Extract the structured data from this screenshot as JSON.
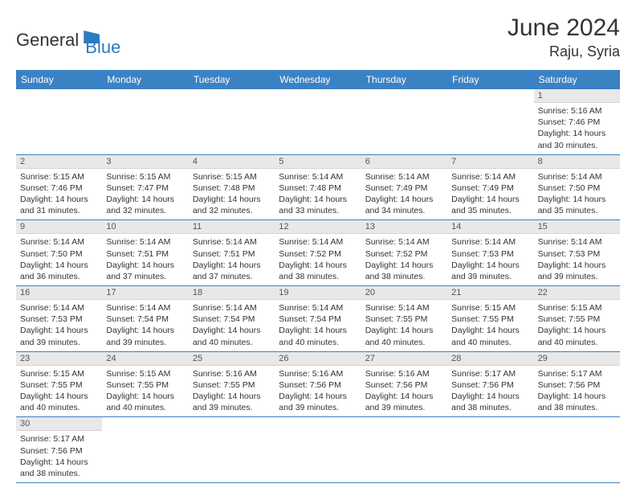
{
  "logo": {
    "text_general": "General",
    "text_blue": "Blue"
  },
  "title": "June 2024",
  "location": "Raju, Syria",
  "colors": {
    "header_bg": "#3b82c4",
    "header_text": "#ffffff",
    "date_bg": "#e8e8e8",
    "date_text": "#555555",
    "body_text": "#333333",
    "border": "#3b82c4",
    "logo_blue": "#2b7bbf"
  },
  "typography": {
    "title_fontsize": 30,
    "location_fontsize": 18,
    "header_fontsize": 12,
    "date_fontsize": 11,
    "body_fontsize": 10.5
  },
  "day_headers": [
    "Sunday",
    "Monday",
    "Tuesday",
    "Wednesday",
    "Thursday",
    "Friday",
    "Saturday"
  ],
  "weeks": [
    [
      null,
      null,
      null,
      null,
      null,
      null,
      {
        "d": "1",
        "sr": "5:16 AM",
        "ss": "7:46 PM",
        "dl": "14 hours and 30 minutes."
      }
    ],
    [
      {
        "d": "2",
        "sr": "5:15 AM",
        "ss": "7:46 PM",
        "dl": "14 hours and 31 minutes."
      },
      {
        "d": "3",
        "sr": "5:15 AM",
        "ss": "7:47 PM",
        "dl": "14 hours and 32 minutes."
      },
      {
        "d": "4",
        "sr": "5:15 AM",
        "ss": "7:48 PM",
        "dl": "14 hours and 32 minutes."
      },
      {
        "d": "5",
        "sr": "5:14 AM",
        "ss": "7:48 PM",
        "dl": "14 hours and 33 minutes."
      },
      {
        "d": "6",
        "sr": "5:14 AM",
        "ss": "7:49 PM",
        "dl": "14 hours and 34 minutes."
      },
      {
        "d": "7",
        "sr": "5:14 AM",
        "ss": "7:49 PM",
        "dl": "14 hours and 35 minutes."
      },
      {
        "d": "8",
        "sr": "5:14 AM",
        "ss": "7:50 PM",
        "dl": "14 hours and 35 minutes."
      }
    ],
    [
      {
        "d": "9",
        "sr": "5:14 AM",
        "ss": "7:50 PM",
        "dl": "14 hours and 36 minutes."
      },
      {
        "d": "10",
        "sr": "5:14 AM",
        "ss": "7:51 PM",
        "dl": "14 hours and 37 minutes."
      },
      {
        "d": "11",
        "sr": "5:14 AM",
        "ss": "7:51 PM",
        "dl": "14 hours and 37 minutes."
      },
      {
        "d": "12",
        "sr": "5:14 AM",
        "ss": "7:52 PM",
        "dl": "14 hours and 38 minutes."
      },
      {
        "d": "13",
        "sr": "5:14 AM",
        "ss": "7:52 PM",
        "dl": "14 hours and 38 minutes."
      },
      {
        "d": "14",
        "sr": "5:14 AM",
        "ss": "7:53 PM",
        "dl": "14 hours and 39 minutes."
      },
      {
        "d": "15",
        "sr": "5:14 AM",
        "ss": "7:53 PM",
        "dl": "14 hours and 39 minutes."
      }
    ],
    [
      {
        "d": "16",
        "sr": "5:14 AM",
        "ss": "7:53 PM",
        "dl": "14 hours and 39 minutes."
      },
      {
        "d": "17",
        "sr": "5:14 AM",
        "ss": "7:54 PM",
        "dl": "14 hours and 39 minutes."
      },
      {
        "d": "18",
        "sr": "5:14 AM",
        "ss": "7:54 PM",
        "dl": "14 hours and 40 minutes."
      },
      {
        "d": "19",
        "sr": "5:14 AM",
        "ss": "7:54 PM",
        "dl": "14 hours and 40 minutes."
      },
      {
        "d": "20",
        "sr": "5:14 AM",
        "ss": "7:55 PM",
        "dl": "14 hours and 40 minutes."
      },
      {
        "d": "21",
        "sr": "5:15 AM",
        "ss": "7:55 PM",
        "dl": "14 hours and 40 minutes."
      },
      {
        "d": "22",
        "sr": "5:15 AM",
        "ss": "7:55 PM",
        "dl": "14 hours and 40 minutes."
      }
    ],
    [
      {
        "d": "23",
        "sr": "5:15 AM",
        "ss": "7:55 PM",
        "dl": "14 hours and 40 minutes."
      },
      {
        "d": "24",
        "sr": "5:15 AM",
        "ss": "7:55 PM",
        "dl": "14 hours and 40 minutes."
      },
      {
        "d": "25",
        "sr": "5:16 AM",
        "ss": "7:55 PM",
        "dl": "14 hours and 39 minutes."
      },
      {
        "d": "26",
        "sr": "5:16 AM",
        "ss": "7:56 PM",
        "dl": "14 hours and 39 minutes."
      },
      {
        "d": "27",
        "sr": "5:16 AM",
        "ss": "7:56 PM",
        "dl": "14 hours and 39 minutes."
      },
      {
        "d": "28",
        "sr": "5:17 AM",
        "ss": "7:56 PM",
        "dl": "14 hours and 38 minutes."
      },
      {
        "d": "29",
        "sr": "5:17 AM",
        "ss": "7:56 PM",
        "dl": "14 hours and 38 minutes."
      }
    ],
    [
      {
        "d": "30",
        "sr": "5:17 AM",
        "ss": "7:56 PM",
        "dl": "14 hours and 38 minutes."
      },
      null,
      null,
      null,
      null,
      null,
      null
    ]
  ],
  "labels": {
    "sunrise": "Sunrise:",
    "sunset": "Sunset:",
    "daylight": "Daylight:"
  }
}
